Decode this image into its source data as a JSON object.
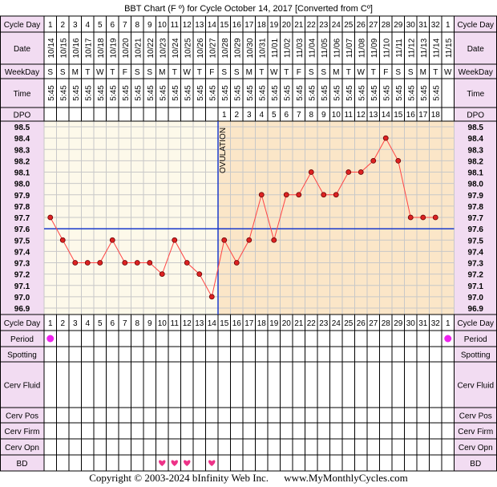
{
  "header": {
    "title": "BBT Chart (F º) for Cycle October 14, 2017  [Converted from Cº]"
  },
  "row_labels": {
    "cycle_day": "Cycle Day",
    "date": "Date",
    "weekday": "WeekDay",
    "time": "Time",
    "dpo": "DPO",
    "period": "Period",
    "spotting": "Spotting",
    "cerv_fluid": "Cerv Fluid",
    "cerv_pos": "Cerv Pos",
    "cerv_firm": "Cerv Firm",
    "cerv_opn": "Cerv Opn",
    "bd": "BD"
  },
  "footer": {
    "copyright": "Copyright © 2003-2024 bInfinity Web Inc.",
    "site": "www.MyMonthlyCycles.com"
  },
  "colors": {
    "label_bg": "#f2dcf2",
    "pre_ov_bg": "#fdf9ea",
    "post_ov_bg": "#fbe6c8",
    "line": "#ff4444",
    "marker_fill": "#dd2222",
    "coverline": "#1a3acc",
    "ovulation_line": "#1a3acc",
    "period_dot": "#ee22ee",
    "heart": "#ee3388"
  },
  "chart_data": {
    "type": "line",
    "title": "BBT Chart (F º) for Cycle October 14, 2017  [Converted from Cº]",
    "cycle_days": [
      "1",
      "2",
      "3",
      "4",
      "5",
      "6",
      "7",
      "8",
      "9",
      "10",
      "11",
      "12",
      "13",
      "14",
      "15",
      "16",
      "17",
      "18",
      "19",
      "20",
      "21",
      "22",
      "23",
      "24",
      "25",
      "26",
      "27",
      "28",
      "29",
      "30",
      "31",
      "32",
      "1"
    ],
    "dates": [
      "10/14",
      "10/15",
      "10/16",
      "10/17",
      "10/18",
      "10/19",
      "10/20",
      "10/21",
      "10/22",
      "10/23",
      "10/24",
      "10/25",
      "10/26",
      "10/27",
      "10/28",
      "10/29",
      "10/30",
      "10/31",
      "11/01",
      "11/02",
      "11/03",
      "11/04",
      "11/05",
      "11/06",
      "11/07",
      "11/08",
      "11/09",
      "11/10",
      "11/11",
      "11/12",
      "11/13",
      "11/14",
      "11/15"
    ],
    "weekdays": [
      "S",
      "S",
      "M",
      "T",
      "W",
      "T",
      "F",
      "S",
      "S",
      "M",
      "T",
      "W",
      "T",
      "F",
      "S",
      "S",
      "M",
      "T",
      "W",
      "T",
      "F",
      "S",
      "S",
      "M",
      "T",
      "W",
      "T",
      "F",
      "S",
      "S",
      "M",
      "T",
      "W"
    ],
    "times": [
      "5:45",
      "5:45",
      "5:45",
      "5:45",
      "5:45",
      "5:45",
      "5:45",
      "5:45",
      "5:45",
      "5:45",
      "5:45",
      "5:45",
      "5:45",
      "5:45",
      "5:45",
      "5:45",
      "5:45",
      "5:45",
      "5:45",
      "5:45",
      "5:45",
      "5:45",
      "5:45",
      "5:45",
      "5:45",
      "5:45",
      "5:45",
      "5:45",
      "5:45",
      "5:45",
      "5:45",
      "5:45",
      ""
    ],
    "dpo": [
      "",
      "",
      "",
      "",
      "",
      "",
      "",
      "",
      "",
      "",
      "",
      "",
      "",
      "",
      "1",
      "2",
      "3",
      "4",
      "5",
      "6",
      "7",
      "8",
      "9",
      "10",
      "11",
      "12",
      "13",
      "14",
      "15",
      "16",
      "17",
      "18",
      ""
    ],
    "temperatures": [
      97.7,
      97.5,
      97.3,
      97.3,
      97.3,
      97.5,
      97.3,
      97.3,
      97.3,
      97.2,
      97.5,
      97.3,
      97.2,
      97.0,
      97.5,
      97.3,
      97.5,
      97.9,
      97.5,
      97.9,
      97.9,
      98.1,
      97.9,
      97.9,
      98.1,
      98.1,
      98.2,
      98.4,
      98.2,
      97.7,
      97.7,
      97.7,
      null
    ],
    "y_ticks": [
      "98.5",
      "98.4",
      "98.3",
      "98.2",
      "98.1",
      "98.0",
      "97.9",
      "97.8",
      "97.7",
      "97.6",
      "97.5",
      "97.4",
      "97.3",
      "97.2",
      "97.1",
      "97.0",
      "96.9"
    ],
    "ylim": [
      96.9,
      98.5
    ],
    "coverline": 97.6,
    "ovulation_after_day": 14,
    "ovulation_label": "OVULATION",
    "period_days": [
      1,
      33
    ],
    "bd_days": [
      10,
      11,
      12,
      14
    ],
    "grid": true
  }
}
